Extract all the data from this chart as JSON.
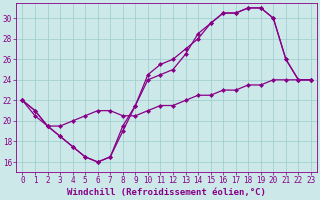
{
  "xlabel": "Windchill (Refroidissement éolien,°C)",
  "bg_color": "#cce8e8",
  "line_color": "#880088",
  "grid_color": "#99cccc",
  "xlim": [
    -0.5,
    23.5
  ],
  "ylim": [
    15.0,
    31.5
  ],
  "xticks": [
    0,
    1,
    2,
    3,
    4,
    5,
    6,
    7,
    8,
    9,
    10,
    11,
    12,
    13,
    14,
    15,
    16,
    17,
    18,
    19,
    20,
    21,
    22,
    23
  ],
  "yticks": [
    16,
    18,
    20,
    22,
    24,
    26,
    28,
    30
  ],
  "line1_x": [
    0,
    1,
    2,
    3,
    4,
    5,
    6,
    7,
    8,
    9,
    10,
    11,
    12,
    13,
    14,
    15,
    16,
    17,
    18,
    19,
    20,
    21,
    22,
    23
  ],
  "line1_y": [
    22,
    21,
    19.5,
    18.5,
    17.5,
    16.5,
    16,
    16.5,
    19.5,
    21.5,
    24.5,
    25.5,
    26,
    27,
    28,
    29.5,
    30.5,
    30.5,
    31,
    31,
    30,
    26,
    24,
    24
  ],
  "line2_x": [
    0,
    1,
    2,
    3,
    4,
    5,
    6,
    7,
    8,
    9,
    10,
    11,
    12,
    13,
    14,
    15,
    16,
    17,
    18,
    19,
    20,
    21,
    22,
    23
  ],
  "line2_y": [
    22,
    21,
    19.5,
    18.5,
    17.5,
    16.5,
    16,
    16.5,
    19,
    21.5,
    24,
    24.5,
    25,
    26.5,
    28.5,
    29.5,
    30.5,
    30.5,
    31,
    31,
    30,
    26,
    24,
    24
  ],
  "line3_x": [
    0,
    1,
    2,
    3,
    4,
    5,
    6,
    7,
    8,
    9,
    10,
    11,
    12,
    13,
    14,
    15,
    16,
    17,
    18,
    19,
    20,
    21,
    22,
    23
  ],
  "line3_y": [
    22,
    20.5,
    19.5,
    19.5,
    20,
    20.5,
    21,
    21,
    20.5,
    20.5,
    21,
    21.5,
    21.5,
    22,
    22.5,
    22.5,
    23,
    23,
    23.5,
    23.5,
    24,
    24,
    24,
    24
  ],
  "marker": "D",
  "marker_size": 2,
  "linewidth": 0.9,
  "tick_fontsize": 5.5,
  "label_fontsize": 6.5
}
